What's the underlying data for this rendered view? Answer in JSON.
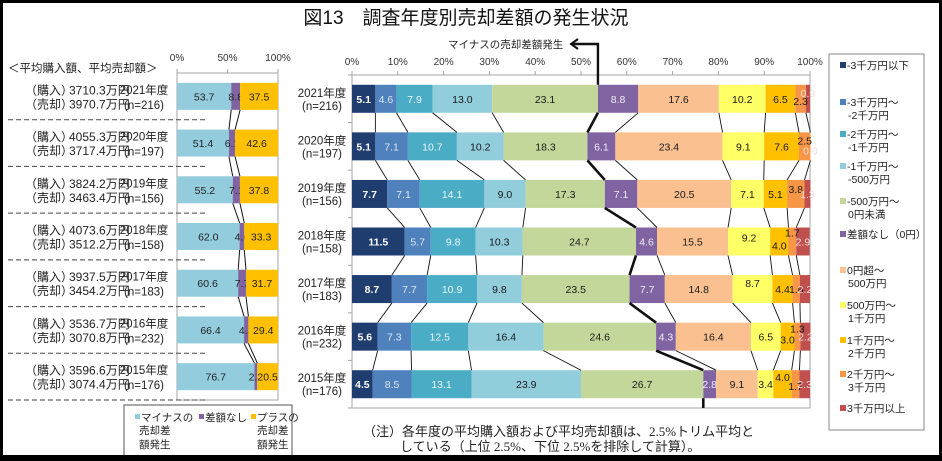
{
  "title": "図13　調査年度別売却差額の発生状況",
  "left_panel": {
    "header": "＜平均購入額、平均売却額＞",
    "purchase_prefix": "（購入）",
    "sale_prefix": "（売却）",
    "rows": [
      {
        "purchase": "3710.3万円",
        "sale": "3970.7万円"
      },
      {
        "purchase": "4055.3万円",
        "sale": "3717.4万円"
      },
      {
        "purchase": "3824.2万円",
        "sale": "3463.4万円"
      },
      {
        "purchase": "4073.6万円",
        "sale": "3512.2万円"
      },
      {
        "purchase": "3937.5万円",
        "sale": "3454.2万円"
      },
      {
        "purchase": "3536.7万円",
        "sale": "3070.8万円"
      },
      {
        "purchase": "3596.6万円",
        "sale": "3074.4万円"
      }
    ]
  },
  "left_legend": {
    "items": [
      {
        "lines": [
          "マイナスの",
          "売却差",
          "額発生"
        ]
      },
      {
        "lines": [
          "差額なし"
        ]
      },
      {
        "lines": [
          "プラスの",
          "売却差",
          "額発生"
        ]
      }
    ]
  },
  "right_legend": {
    "items": [
      {
        "lines": [
          "-3千万円以下"
        ]
      },
      {
        "lines": [
          "-3千万円～",
          "-2千万円"
        ]
      },
      {
        "lines": [
          "-2千万円～",
          "-1千万円"
        ]
      },
      {
        "lines": [
          "-1千万円～",
          "-500万円"
        ]
      },
      {
        "lines": [
          "-500万円～",
          "0円未満"
        ]
      },
      {
        "lines": [
          "差額なし（0円）"
        ]
      },
      {
        "lines": [
          "0円超～",
          "500万円"
        ]
      },
      {
        "lines": [
          "500万円～",
          "1千万円"
        ]
      },
      {
        "lines": [
          "1千万円～",
          "2千万円"
        ]
      },
      {
        "lines": [
          "2千万円～",
          "3千万円"
        ]
      },
      {
        "lines": [
          "3千万円以上"
        ]
      }
    ]
  },
  "note": {
    "lines": [
      "（注）各年度の平均購入額および平均売却額は、2.5%トリム平均と",
      "している（上位 2.5%、下位 2.5%を排除して計算）。"
    ]
  },
  "chart_data": [
    {
      "type": "bar",
      "orientation": "horizontal",
      "stacked": true,
      "percent": true,
      "title": "",
      "xlabel": "",
      "ylabel": "",
      "xlim": [
        0,
        100
      ],
      "xticks": [
        "0%",
        "50%",
        "100%"
      ],
      "grid": false,
      "categories": [
        "2021年度",
        "2020年度",
        "2019年度",
        "2018年度",
        "2017年度",
        "2016年度",
        "2015年度"
      ],
      "category_sublabels": [
        "(n=216)",
        "(n=197)",
        "(n=156)",
        "(n=158)",
        "(n=183)",
        "(n=232)",
        "(n=176)"
      ],
      "legend_position": "bottom",
      "series": [
        {
          "name": "マイナスの売却差額発生",
          "color": "#93cddd",
          "values": [
            53.7,
            51.4,
            55.2,
            62.0,
            60.6,
            66.4,
            76.7
          ]
        },
        {
          "name": "差額なし",
          "color": "#8064a2",
          "values": [
            8.8,
            6.1,
            7.1,
            4.6,
            7.7,
            4.3,
            2.8
          ]
        },
        {
          "name": "プラスの売却差額発生",
          "color": "#ffc000",
          "values": [
            37.5,
            42.6,
            37.8,
            33.3,
            31.7,
            29.4,
            20.5
          ]
        }
      ]
    },
    {
      "type": "bar",
      "orientation": "horizontal",
      "stacked": true,
      "percent": true,
      "title": "",
      "xlabel": "",
      "ylabel": "",
      "xlim": [
        0,
        100
      ],
      "xticks": [
        "0%",
        "10%",
        "20%",
        "30%",
        "40%",
        "50%",
        "60%",
        "70%",
        "80%",
        "90%",
        "100%"
      ],
      "grid": false,
      "annotation": "マイナスの売却差額発生",
      "categories": [
        "2021年度",
        "2020年度",
        "2019年度",
        "2018年度",
        "2017年度",
        "2016年度",
        "2015年度"
      ],
      "category_sublabels": [
        "(n=216)",
        "(n=197)",
        "(n=156)",
        "(n=158)",
        "(n=183)",
        "(n=232)",
        "(n=176)"
      ],
      "legend_position": "right",
      "series": [
        {
          "name": "-3千万円以下",
          "color": "#1f3d6e",
          "values": [
            5.1,
            5.1,
            7.7,
            11.5,
            8.7,
            5.6,
            4.5
          ]
        },
        {
          "name": "-3千万円～-2千万円",
          "color": "#4f81bd",
          "values": [
            4.6,
            7.1,
            7.1,
            5.7,
            7.7,
            7.3,
            8.5
          ]
        },
        {
          "name": "-2千万円～-1千万円",
          "color": "#4bacc6",
          "values": [
            7.9,
            10.7,
            14.1,
            9.8,
            10.9,
            12.5,
            13.1
          ]
        },
        {
          "name": "-1千万円～-500万円",
          "color": "#92cddc",
          "values": [
            13.0,
            10.2,
            9.0,
            10.3,
            9.8,
            16.4,
            23.9
          ]
        },
        {
          "name": "-500万円～0円未満",
          "color": "#c4d79b",
          "values": [
            23.1,
            18.3,
            17.3,
            24.7,
            23.5,
            24.6,
            26.7
          ]
        },
        {
          "name": "差額なし（0円）",
          "color": "#8064a2",
          "values": [
            8.8,
            6.1,
            7.1,
            4.6,
            7.7,
            4.3,
            2.8
          ]
        },
        {
          "name": "0円超～500万円",
          "color": "#fac090",
          "values": [
            17.6,
            23.4,
            20.5,
            15.5,
            14.8,
            16.4,
            9.1
          ]
        },
        {
          "name": "500万円～1千万円",
          "color": "#ffff66",
          "values": [
            10.2,
            9.1,
            7.1,
            9.2,
            8.7,
            6.5,
            3.4
          ]
        },
        {
          "name": "1千万円～2千万円",
          "color": "#ffc000",
          "values": [
            6.5,
            7.6,
            5.1,
            4.0,
            4.4,
            3.0,
            4.0
          ]
        },
        {
          "name": "2千万円～3千万円",
          "color": "#f79646",
          "values": [
            2.3,
            2.5,
            3.8,
            1.7,
            1.6,
            1.3,
            1.7
          ]
        },
        {
          "name": "3千万円以上",
          "color": "#c0504d",
          "values": [
            0.9,
            0.0,
            1.3,
            2.9,
            2.2,
            2.2,
            2.3
          ]
        }
      ]
    }
  ]
}
